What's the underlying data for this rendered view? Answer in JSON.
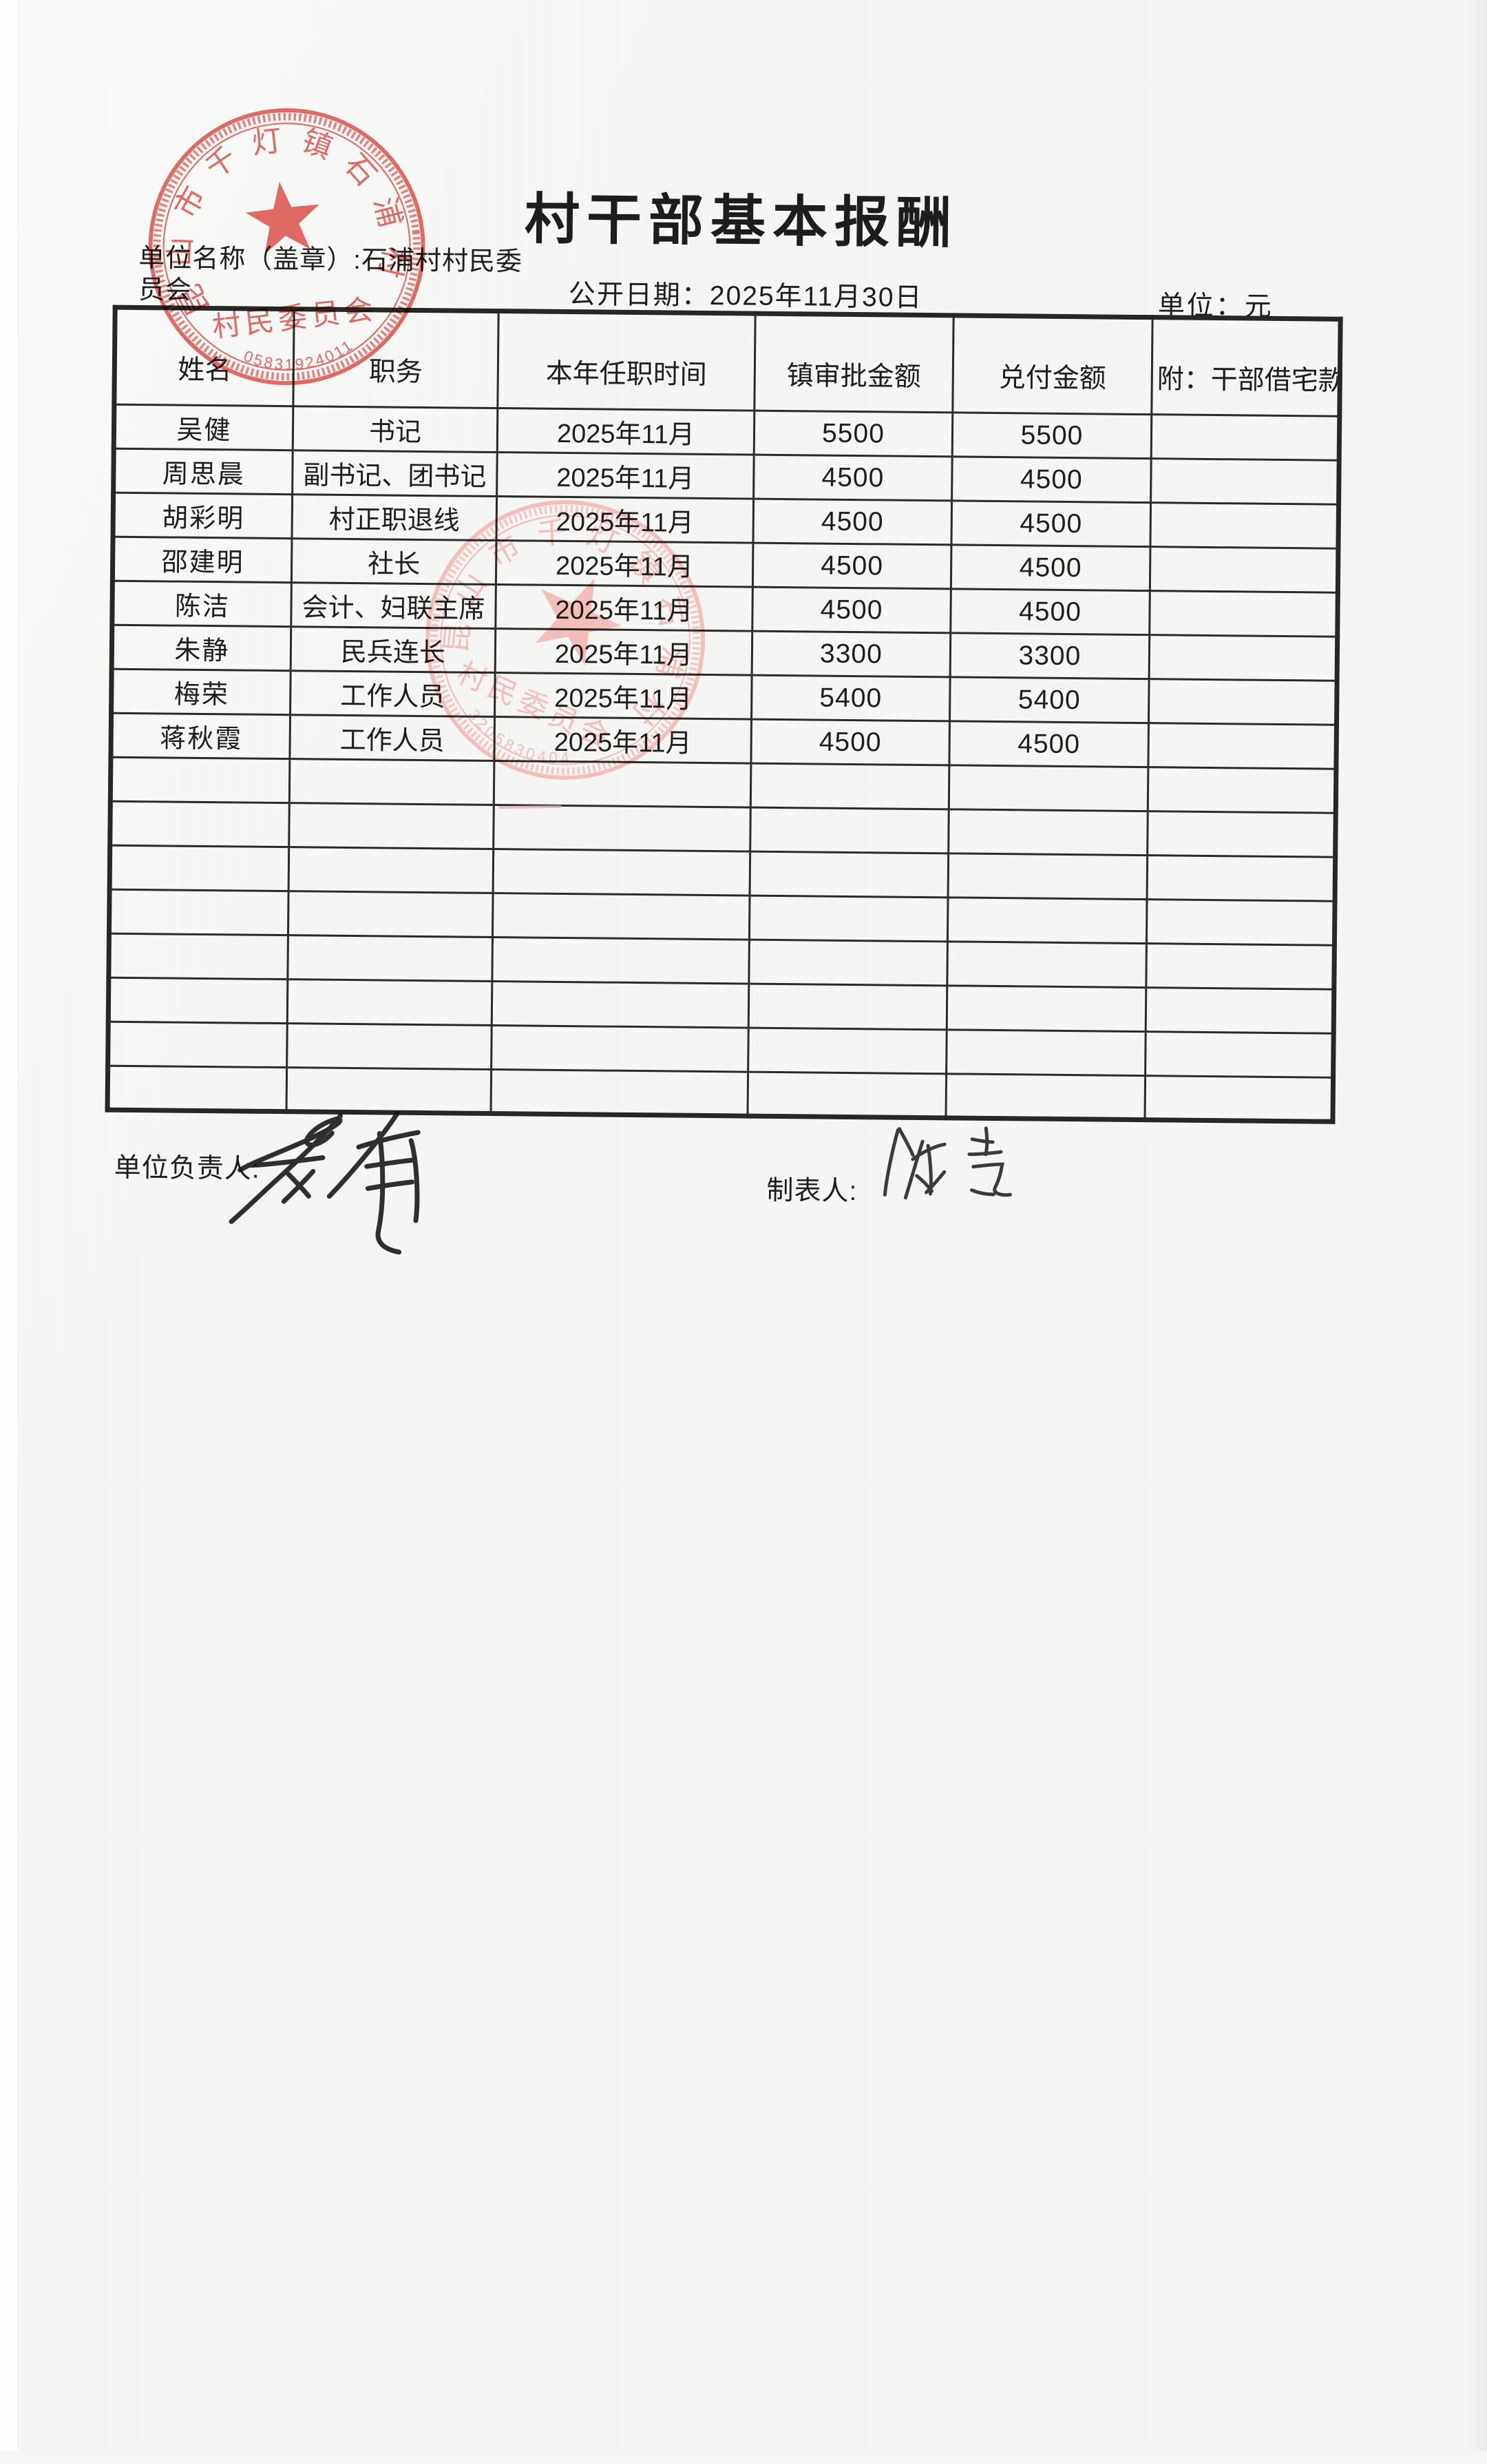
{
  "document": {
    "title": "村干部基本报酬",
    "unit_name_label_line1": "单位名称（盖章）:石浦村村民委",
    "unit_name_label_line2": "员会",
    "publish_date_label": "公开日期：2025年11月30日",
    "unit_label": "单位：元"
  },
  "table": {
    "headers": [
      "姓名",
      "职务",
      "本年任职时间",
      "镇审批金额",
      "兑付金额",
      "附：干部借宅款"
    ],
    "rows": [
      [
        "吴健",
        "书记",
        "2025年11月",
        "5500",
        "5500",
        ""
      ],
      [
        "周思晨",
        "副书记、团书记",
        "2025年11月",
        "4500",
        "4500",
        ""
      ],
      [
        "胡彩明",
        "村正职退线",
        "2025年11月",
        "4500",
        "4500",
        ""
      ],
      [
        "邵建明",
        "社长",
        "2025年11月",
        "4500",
        "4500",
        ""
      ],
      [
        "陈洁",
        "会计、妇联主席",
        "2025年11月",
        "4500",
        "4500",
        ""
      ],
      [
        "朱静",
        "民兵连长",
        "2025年11月",
        "3300",
        "3300",
        ""
      ],
      [
        "梅荣",
        "工作人员",
        "2025年11月",
        "5400",
        "5400",
        ""
      ],
      [
        "蒋秋霞",
        "工作人员",
        "2025年11月",
        "4500",
        "4500",
        ""
      ]
    ],
    "empty_row_count": 8
  },
  "footer": {
    "responsible_label": "单位负责人:",
    "responsible_signature": "吴健",
    "tabulator_label": "制表人:",
    "tabulator_signature": "陈洁"
  },
  "stamps": [
    {
      "name": "village-committee-seal-top",
      "arc_text": "昆山市千灯镇石浦村",
      "line_text": "村民委员会",
      "serial": "05831924011",
      "color": "#d94a41"
    },
    {
      "name": "village-committee-seal-middle",
      "arc_text": "昆山市千灯镇石浦村",
      "line_text": "村民委员会",
      "serial": "3205830404",
      "color": "#ee8f88"
    }
  ],
  "colors": {
    "paper": "#f6f6f5",
    "ink": "#1d1d1b",
    "table_line": "#272725",
    "stray_mark_pink": "#e5a0c6"
  }
}
